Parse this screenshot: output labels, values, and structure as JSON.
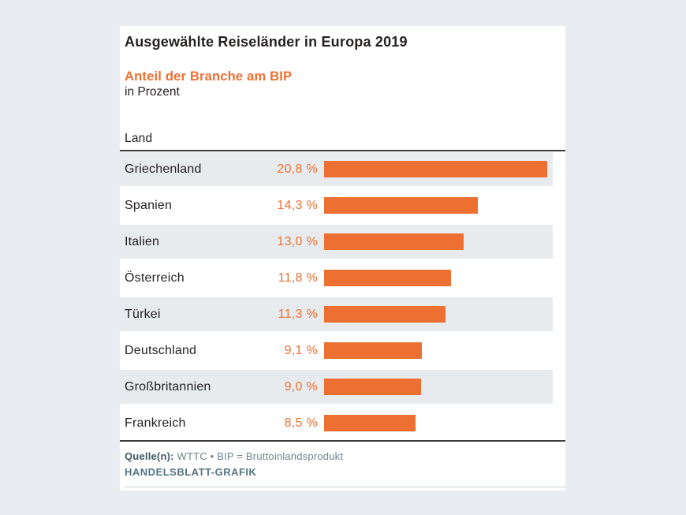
{
  "card": {
    "title": "Ausgewählte Reiseländer in Europa 2019",
    "subtitle": "Anteil der Branche am BIP",
    "unit": "in Prozent",
    "column_header": "Land"
  },
  "chart_data": {
    "type": "bar",
    "orientation": "horizontal",
    "title": "Ausgewählte Reiseländer in Europa 2019",
    "subtitle": "Anteil der Branche am BIP",
    "unit": "in Prozent",
    "column_header": "Land",
    "categories": [
      "Griechenland",
      "Spanien",
      "Italien",
      "Österreich",
      "Türkei",
      "Deutschland",
      "Großbritannien",
      "Frankreich"
    ],
    "values": [
      20.8,
      14.3,
      13.0,
      11.8,
      11.3,
      9.1,
      9.0,
      8.5
    ],
    "value_labels": [
      "20,8 %",
      "14,3 %",
      "13,0 %",
      "11,8 %",
      "11,3 %",
      "9,1 %",
      "9,0 %",
      "8,5 %"
    ],
    "xlim": [
      0,
      21.3
    ],
    "legend": "none",
    "grid": "off"
  },
  "footer": {
    "source_label": "Quelle(n):",
    "source_text": "WTTC • BIP = Bruttoinlandsprodukt",
    "credit": "HANDELSBLATT-GRAFIK"
  },
  "colors": {
    "accent": "#ed7032",
    "stripe": "#e8ebee",
    "page_background": "#e9ecf0",
    "ink": "#262121",
    "rule": "#3c3c3c",
    "source_text": "#70838f",
    "source_label": "#415866",
    "credit": "#577484"
  }
}
